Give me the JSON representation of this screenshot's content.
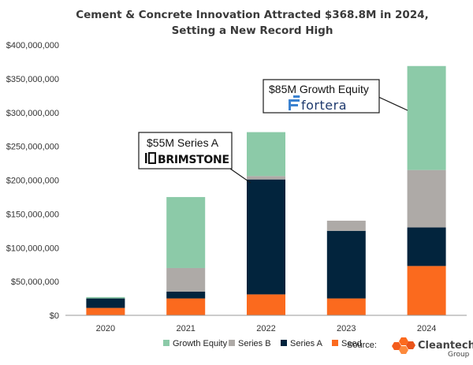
{
  "chart_data": {
    "type": "bar",
    "stacked": true,
    "title": "Cement & Concrete Innovation Attracted $368.8M in 2024,",
    "subtitle": "Setting a New Record High",
    "xlabel": "",
    "ylabel": "",
    "ylim": [
      0,
      400000000
    ],
    "yticks": [
      "$400,000,000",
      "$350,000,000",
      "$300,000,000",
      "$250,000,000",
      "$200,000,000",
      "$150,000,000",
      "$100,000,000",
      "$50,000,000",
      "$0"
    ],
    "ytick_values": [
      400000000,
      350000000,
      300000000,
      250000000,
      200000000,
      150000000,
      100000000,
      50000000,
      0
    ],
    "grid": false,
    "categories": [
      "2020",
      "2021",
      "2022",
      "2023",
      "2024"
    ],
    "series": [
      {
        "name": "Seed",
        "color": "#fb6a1e",
        "values": [
          11000000,
          25000000,
          31000000,
          25000000,
          73000000
        ]
      },
      {
        "name": "Series A",
        "color": "#02243d",
        "values": [
          14000000,
          10000000,
          170000000,
          100000000,
          57000000
        ]
      },
      {
        "name": "Series B",
        "color": "#aeaaa7",
        "values": [
          0,
          35000000,
          5000000,
          15000000,
          85000000
        ]
      },
      {
        "name": "Growth Equity",
        "color": "#8ccaa8",
        "values": [
          2000000,
          105000000,
          65000000,
          0,
          153800000
        ]
      }
    ],
    "legend": {
      "position": "bottom",
      "order": [
        "Growth Equity",
        "Series B",
        "Series A",
        "Seed"
      ]
    },
    "annotations": [
      {
        "text": "$55M Series A",
        "brand": "BRIMSTONE",
        "brand_mark": "|□",
        "category": "2022",
        "value": 202000000
      },
      {
        "text": "$85M Growth Equity",
        "brand": "fortera",
        "category": "2024",
        "value": 320000000
      }
    ]
  },
  "source": {
    "label": "Source:",
    "brand": "Cleantech.",
    "brand_sub": "Group",
    "logo_colors": [
      "#fb6a1e",
      "#e9541a",
      "#fd8a3c",
      "#f45d1c"
    ]
  }
}
